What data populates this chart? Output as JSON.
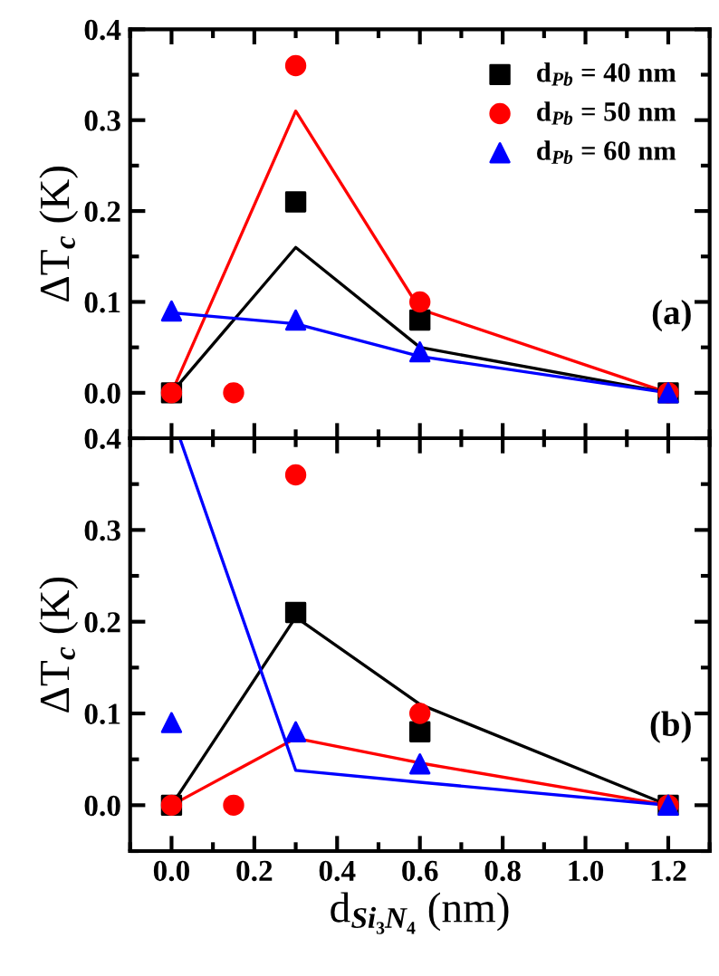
{
  "chart_data": [
    {
      "type": "scatter",
      "ylabel": "ΔT$_{c}$ (K)",
      "annotations": [
        "(a)"
      ],
      "legend": "top right",
      "tick_labels": "y",
      "xlim": [
        -0.1,
        1.3
      ],
      "xticks": [
        0,
        0.2,
        0.4,
        0.6,
        0.8,
        1,
        1.2
      ],
      "ylim": [
        -0.05,
        0.4
      ],
      "yticks": [
        {
          "value": 0,
          "label": "0.0"
        },
        0.1,
        0.2,
        0.3,
        0.4
      ],
      "series": [
        {
          "type": "line",
          "color": "#ff0000",
          "x": [
            0,
            0.3,
            0.6,
            1.2
          ],
          "values": [
            0,
            0.31,
            0.092,
            0
          ]
        },
        {
          "type": "line",
          "color": "#000000",
          "x": [
            0,
            0.3,
            0.6,
            1.2
          ],
          "values": [
            0,
            0.16,
            0.05,
            0
          ]
        },
        {
          "type": "line",
          "color": "#0000ff",
          "x": [
            0,
            0.3,
            0.6,
            1.2
          ],
          "values": [
            0.088,
            0.076,
            0.04,
            0
          ]
        },
        {
          "name": "d$_{Pb}$ = 40 nm",
          "marker": "square",
          "color": "#000000",
          "x": [
            0,
            0.3,
            0.6,
            1.2
          ],
          "values": [
            0,
            0.21,
            0.08,
            0
          ]
        },
        {
          "name": "d$_{Pb}$ = 50 nm",
          "marker": "circle",
          "color": "#ff0000",
          "x": [
            0,
            0.15,
            0.3,
            0.6,
            1.2
          ],
          "values": [
            0,
            0,
            0.36,
            0.1,
            0
          ]
        },
        {
          "name": "d$_{Pb}$ = 60 nm",
          "marker": "triangle",
          "color": "#0000ff",
          "x": [
            0,
            0.3,
            0.6,
            1.2
          ],
          "values": [
            0.09,
            0.08,
            0.045,
            0
          ]
        }
      ]
    },
    {
      "type": "scatter",
      "ylabel": "ΔT$_{c}$ (K)",
      "xlabel": "d$_{Si₃N₄}$ (nm)",
      "annotations": [
        "(b)"
      ],
      "xlim": [
        -0.1,
        1.3
      ],
      "xticks": [
        {
          "value": 0,
          "label": "0.0"
        },
        0.2,
        0.4,
        0.6,
        0.8,
        {
          "value": 1,
          "label": "1.0"
        },
        1.2
      ],
      "ylim": [
        -0.05,
        0.4
      ],
      "yticks": [
        {
          "value": 0,
          "label": "0.0"
        },
        0.1,
        0.2,
        0.3,
        0.4
      ],
      "series": [
        {
          "type": "line",
          "color": "#000000",
          "x": [
            0,
            0.3,
            0.6,
            1.2
          ],
          "values": [
            0,
            0.205,
            0.11,
            0
          ]
        },
        {
          "type": "line",
          "color": "#ff0000",
          "x": [
            0,
            0.3,
            0.6,
            1.2
          ],
          "values": [
            0,
            0.073,
            0.046,
            0
          ]
        },
        {
          "type": "line",
          "color": "#0000ff",
          "x": [
            0.02,
            0.3,
            0.6,
            1.2
          ],
          "values": [
            0.4,
            0.038,
            0.025,
            0
          ]
        },
        {
          "marker": "square",
          "color": "#000000",
          "x": [
            0,
            0.3,
            0.6,
            1.2
          ],
          "values": [
            0,
            0.21,
            0.08,
            0
          ]
        },
        {
          "marker": "circle",
          "color": "#ff0000",
          "x": [
            0,
            0.15,
            0.3,
            0.6,
            1.2
          ],
          "values": [
            0,
            0,
            0.36,
            0.1,
            0
          ]
        },
        {
          "marker": "triangle",
          "color": "#0000ff",
          "x": [
            0,
            0.3,
            0.6,
            1.2
          ],
          "values": [
            0.09,
            0.08,
            0.045,
            0
          ]
        }
      ]
    }
  ]
}
